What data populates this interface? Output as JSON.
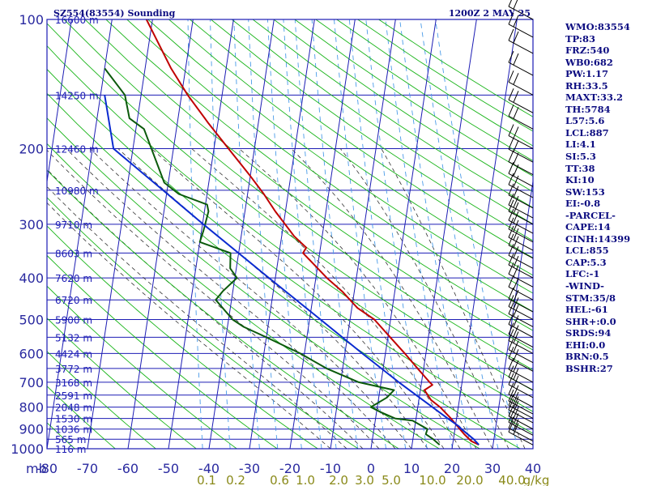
{
  "header": {
    "title": "SZ554(83554) Sounding",
    "datetime": "1200Z  2 MAY 25"
  },
  "side_panel": [
    "WMO:83554",
    "TP:83",
    "FRZ:540",
    "WB0:682",
    "PW:1.17",
    "RH:33.5",
    "MAXT:33.2",
    "TH:5784",
    "L57:5.6",
    "LCL:887",
    "LI:4.1",
    "SI:5.3",
    "TT:38",
    "KI:10",
    "SW:153",
    "EI:-0.8",
    "-PARCEL-",
    "CAPE:14",
    "CINH:14399",
    "LCL:855",
    "CAP:5.3",
    "LFC:-1",
    "-WIND-",
    "STM:35/8",
    "HEL:-61",
    "SHR+:0.0",
    "SRDS:94",
    "EHI:0.0",
    "BRN:0.5",
    "BSHR:27"
  ],
  "colors": {
    "grid_blue": "#1c1cb4",
    "dry_adiabat": "#18b418",
    "mixing_ratio": "#4a9be8",
    "moist_adiabat": "#333333",
    "temperature": "#c00000",
    "dewpoint": "#0b5a0b",
    "parcel": "#0a2ad0",
    "wind_barb": "#000000"
  },
  "chart_data": {
    "type": "line",
    "skew_t": true,
    "y_scale": "log",
    "ylim": [
      1000,
      100
    ],
    "xlim": [
      -80,
      40
    ],
    "y_unit": "mb",
    "x_unit": "°C",
    "pressure_ticks": [
      100,
      200,
      300,
      400,
      500,
      600,
      700,
      800,
      900,
      1000
    ],
    "temperature_ticks": [
      -80,
      -70,
      -60,
      -50,
      -40,
      -30,
      -20,
      -10,
      0,
      10,
      20,
      30,
      40
    ],
    "mixing_ratio_labels": [
      "0.1",
      "0.2",
      "0.6",
      "1.0",
      "2.0",
      "3.0",
      "5.0",
      "10.0",
      "20.0",
      "40.0",
      "g/kg"
    ],
    "heights": [
      {
        "p": 100,
        "label": "16600 m"
      },
      {
        "p": 150,
        "label": "14250 m"
      },
      {
        "p": 200,
        "label": "12460 m"
      },
      {
        "p": 250,
        "label": "10980 m"
      },
      {
        "p": 300,
        "label": "9710 m"
      },
      {
        "p": 350,
        "label": "8603 m"
      },
      {
        "p": 400,
        "label": "7620 m"
      },
      {
        "p": 450,
        "label": "6720 m"
      },
      {
        "p": 500,
        "label": "5900 m"
      },
      {
        "p": 550,
        "label": "5132 m"
      },
      {
        "p": 600,
        "label": "4424 m"
      },
      {
        "p": 650,
        "label": "3772 m"
      },
      {
        "p": 700,
        "label": "3168 m"
      },
      {
        "p": 750,
        "label": "2591 m"
      },
      {
        "p": 800,
        "label": "2048 m"
      },
      {
        "p": 850,
        "label": "1530 m"
      },
      {
        "p": 900,
        "label": "1036 m"
      },
      {
        "p": 950,
        "label": "565 m"
      },
      {
        "p": 1000,
        "label": "116 m"
      }
    ],
    "series": [
      {
        "points": [
          [
            979,
            26.5
          ],
          [
            960,
            24.5
          ],
          [
            925,
            22.5
          ],
          [
            900,
            21.2
          ],
          [
            850,
            18.6
          ],
          [
            800,
            15.5
          ],
          [
            770,
            13.0
          ],
          [
            730,
            11.0
          ],
          [
            710,
            12.8
          ],
          [
            700,
            12.0
          ],
          [
            650,
            8.5
          ],
          [
            600,
            4.8
          ],
          [
            550,
            0.6
          ],
          [
            500,
            -4.0
          ],
          [
            470,
            -8.6
          ],
          [
            430,
            -13.0
          ],
          [
            400,
            -17.3
          ],
          [
            350,
            -24.1
          ],
          [
            340,
            -23.5
          ],
          [
            320,
            -26.9
          ],
          [
            300,
            -29.6
          ],
          [
            280,
            -32.5
          ],
          [
            255,
            -36.0
          ],
          [
            230,
            -40.3
          ],
          [
            200,
            -46.4
          ],
          [
            175,
            -52.2
          ],
          [
            150,
            -58.5
          ],
          [
            130,
            -63.6
          ],
          [
            100,
            -71.5
          ]
        ]
      },
      {
        "points": [
          [
            979,
            16.8
          ],
          [
            950,
            15.0
          ],
          [
            925,
            13.0
          ],
          [
            900,
            13.2
          ],
          [
            860,
            9.2
          ],
          [
            850,
            4.8
          ],
          [
            820,
            0.8
          ],
          [
            800,
            -1.6
          ],
          [
            760,
            2.0
          ],
          [
            730,
            3.5
          ],
          [
            700,
            -5.5
          ],
          [
            650,
            -14.0
          ],
          [
            600,
            -21.0
          ],
          [
            550,
            -30.0
          ],
          [
            520,
            -36.0
          ],
          [
            500,
            -39.0
          ],
          [
            450,
            -43.9
          ],
          [
            430,
            -42.5
          ],
          [
            400,
            -39.5
          ],
          [
            380,
            -41.5
          ],
          [
            350,
            -42.0
          ],
          [
            330,
            -50.0
          ],
          [
            310,
            -49.5
          ],
          [
            280,
            -49.0
          ],
          [
            270,
            -49.6
          ],
          [
            255,
            -57.0
          ],
          [
            240,
            -61.0
          ],
          [
            180,
            -68.0
          ],
          [
            170,
            -72.0
          ],
          [
            150,
            -74.0
          ],
          [
            130,
            -80.0
          ]
        ]
      },
      {
        "points": [
          [
            979,
            26.5
          ],
          [
            950,
            25.0
          ],
          [
            900,
            21.6
          ],
          [
            887,
            20.9
          ],
          [
            850,
            17.8
          ],
          [
            800,
            13.6
          ],
          [
            700,
            4.4
          ],
          [
            600,
            -5.7
          ],
          [
            500,
            -17.3
          ],
          [
            400,
            -31.6
          ],
          [
            300,
            -49.8
          ],
          [
            250,
            -61.0
          ],
          [
            200,
            -74.8
          ],
          [
            150,
            -79.0
          ]
        ]
      }
    ]
  }
}
